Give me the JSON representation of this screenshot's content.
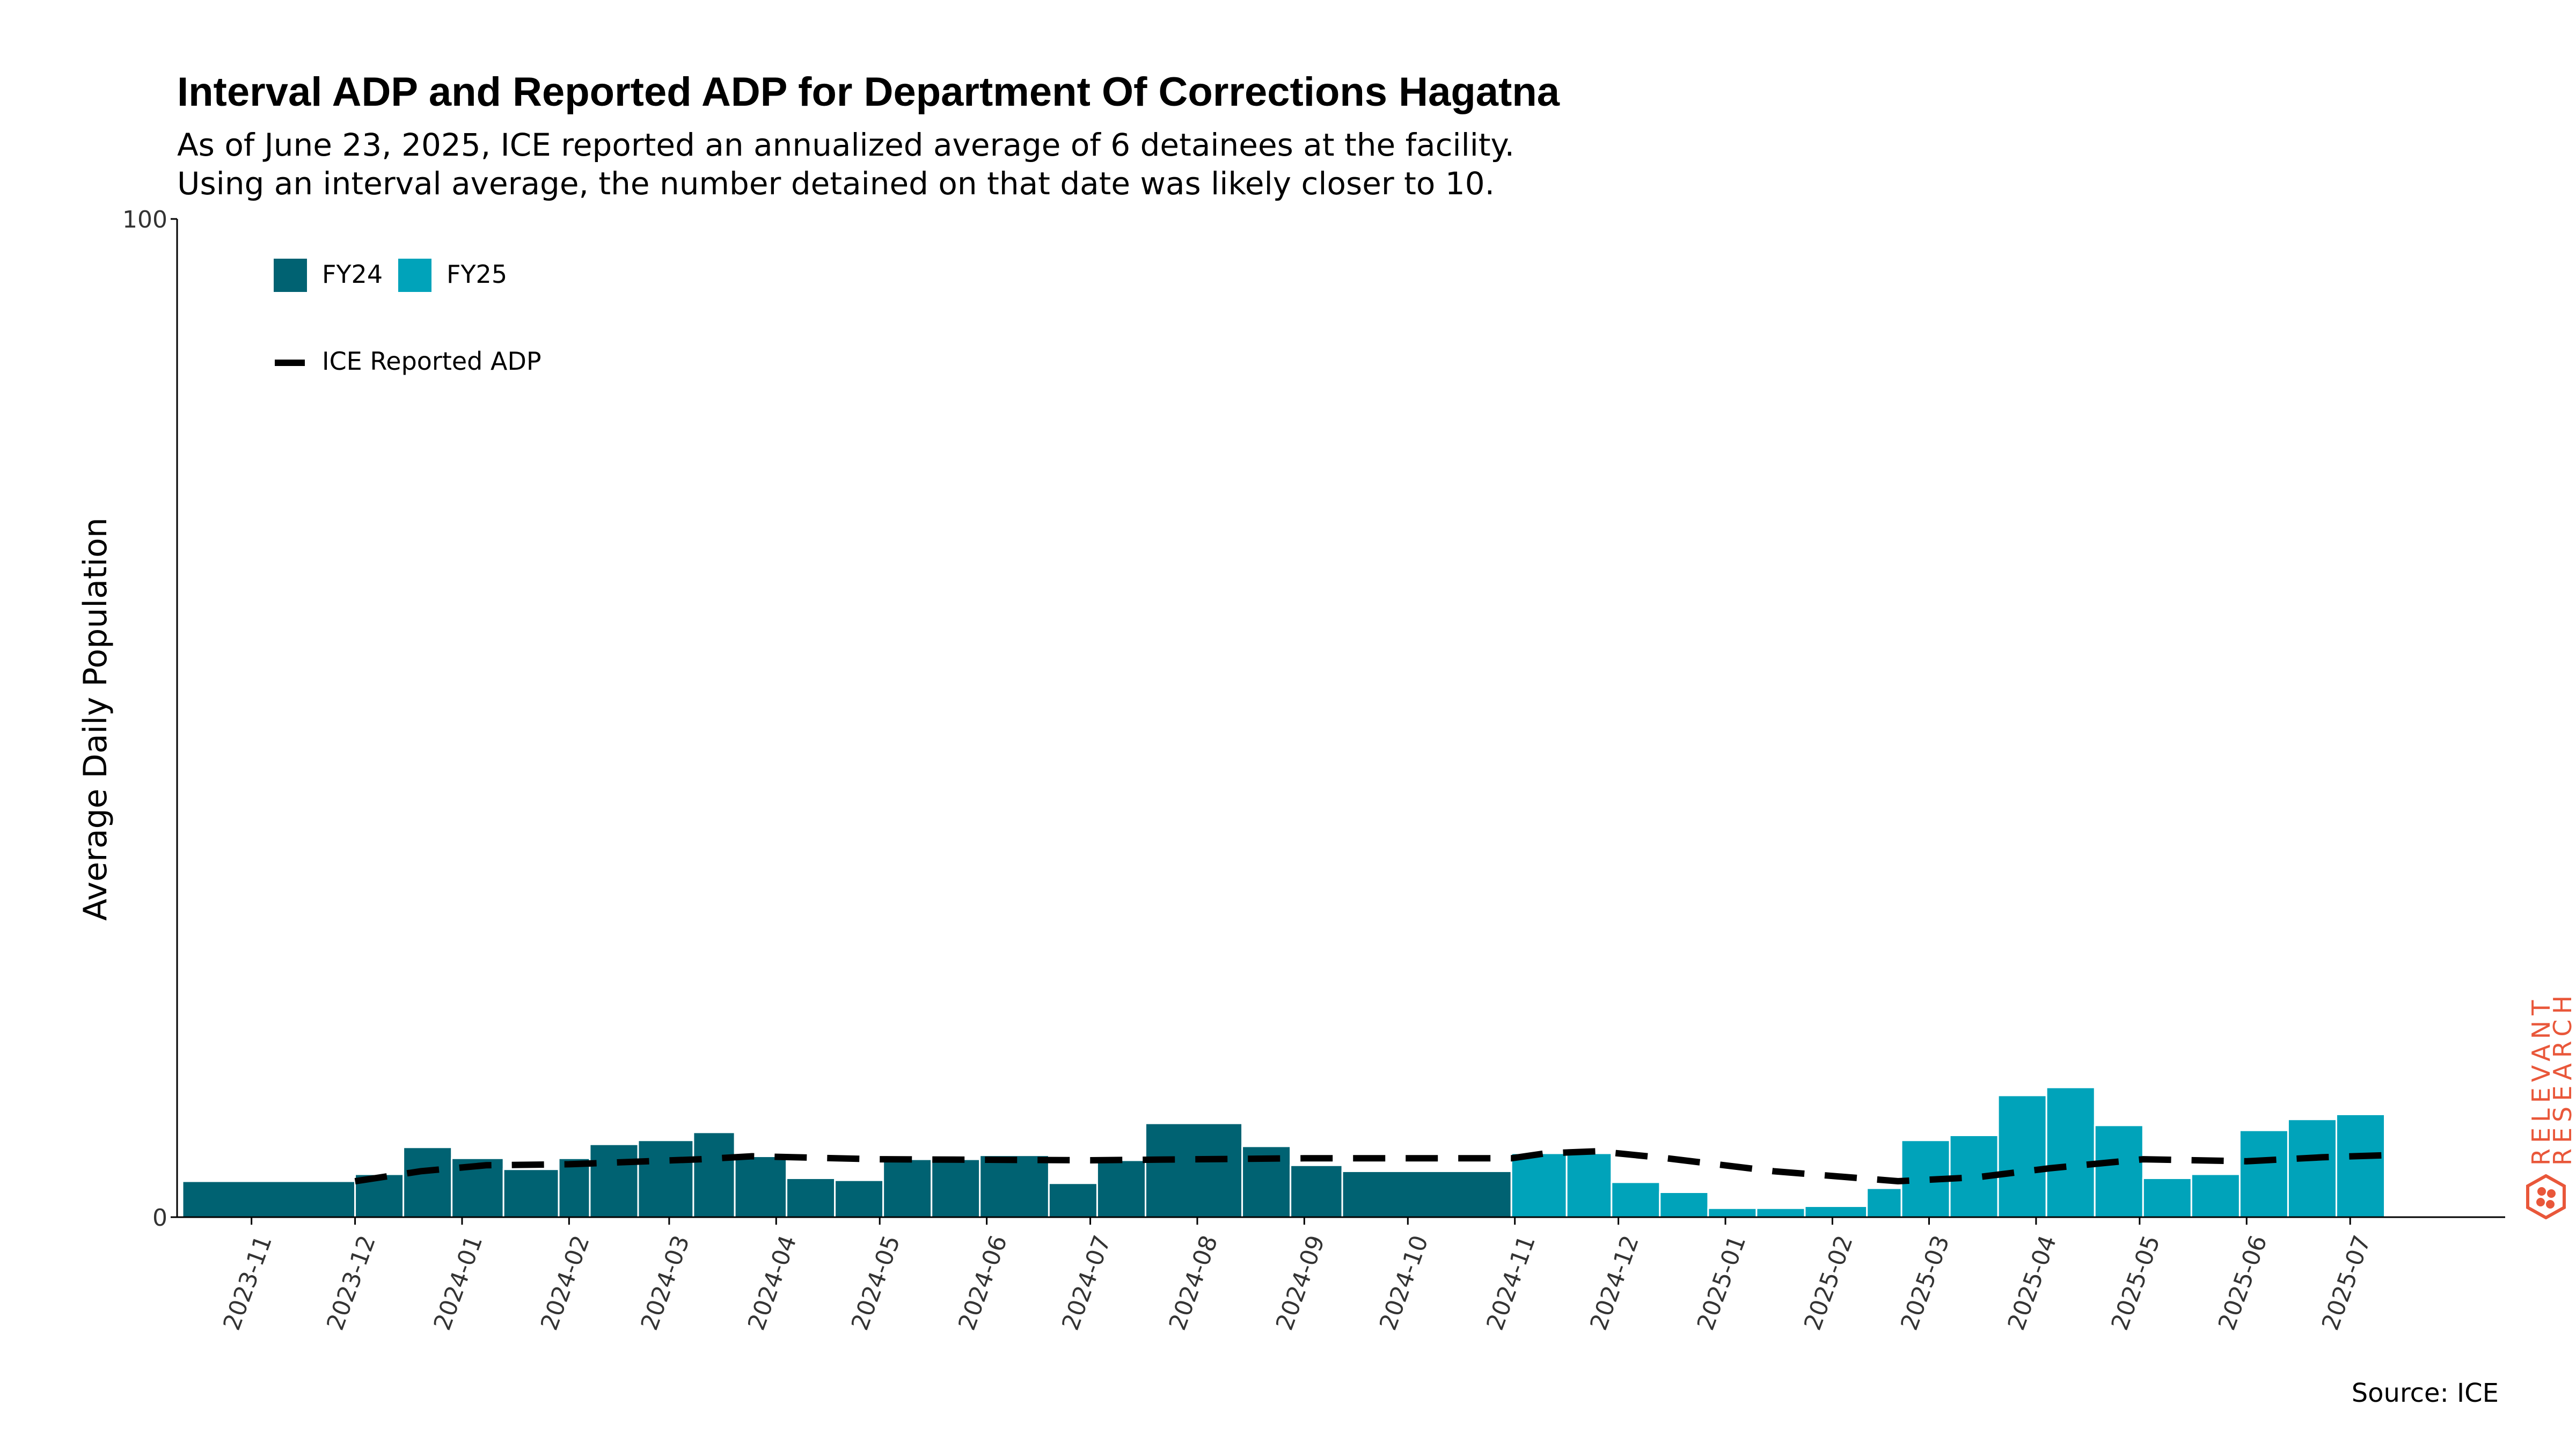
{
  "chart_data": {
    "type": "bar",
    "title": "Interval ADP and Reported ADP for Department Of Corrections Hagatna",
    "subtitle_lines": [
      "As of June 23, 2025, ICE reported an annualized average of 6 detainees at the facility.",
      "Using an interval average, the number detained on that date was likely closer to 10."
    ],
    "ylabel": "Average Daily Population",
    "ylim": [
      0,
      100
    ],
    "y_ticks": [
      "0",
      "100"
    ],
    "x_tick_labels": [
      "2023-11",
      "2023-12",
      "2024-01",
      "2024-02",
      "2024-03",
      "2024-04",
      "2024-05",
      "2024-06",
      "2024-07",
      "2024-08",
      "2024-09",
      "2024-10",
      "2024-11",
      "2024-12",
      "2025-01",
      "2025-02",
      "2025-03",
      "2025-04",
      "2025-05",
      "2025-06",
      "2025-07"
    ],
    "x_range": [
      "2023-10-12",
      "2025-07-26"
    ],
    "legend": {
      "placement": "top-left",
      "fy24_label": "FY24",
      "fy25_label": "FY25",
      "line_label": "ICE Reported ADP"
    },
    "colors": {
      "FY24": "#006272",
      "FY25": "#00a3ba",
      "reported_line": "#000000"
    },
    "series": [
      {
        "name": "FY24",
        "type": "bar",
        "intervals": [
          {
            "start": "2023-10-12",
            "end": "2023-12-01",
            "value": 3.6
          },
          {
            "start": "2023-12-01",
            "end": "2023-12-15",
            "value": 4.3
          },
          {
            "start": "2023-12-15",
            "end": "2023-12-29",
            "value": 7.0
          },
          {
            "start": "2023-12-29",
            "end": "2024-01-13",
            "value": 5.9
          },
          {
            "start": "2024-01-13",
            "end": "2024-01-29",
            "value": 4.8
          },
          {
            "start": "2024-01-29",
            "end": "2024-02-07",
            "value": 5.9
          },
          {
            "start": "2024-02-07",
            "end": "2024-02-21",
            "value": 7.3
          },
          {
            "start": "2024-02-21",
            "end": "2024-03-08",
            "value": 7.7
          },
          {
            "start": "2024-03-08",
            "end": "2024-03-20",
            "value": 8.5
          },
          {
            "start": "2024-03-20",
            "end": "2024-04-04",
            "value": 6.1
          },
          {
            "start": "2024-04-04",
            "end": "2024-04-18",
            "value": 3.9
          },
          {
            "start": "2024-04-18",
            "end": "2024-05-02",
            "value": 3.7
          },
          {
            "start": "2024-05-02",
            "end": "2024-05-16",
            "value": 5.8
          },
          {
            "start": "2024-05-16",
            "end": "2024-05-30",
            "value": 5.8
          },
          {
            "start": "2024-05-30",
            "end": "2024-06-19",
            "value": 6.2
          },
          {
            "start": "2024-06-19",
            "end": "2024-07-03",
            "value": 3.4
          },
          {
            "start": "2024-07-03",
            "end": "2024-07-17",
            "value": 5.7
          },
          {
            "start": "2024-07-17",
            "end": "2024-08-14",
            "value": 9.4
          },
          {
            "start": "2024-08-14",
            "end": "2024-08-28",
            "value": 7.1
          },
          {
            "start": "2024-08-28",
            "end": "2024-09-12",
            "value": 5.2
          },
          {
            "start": "2024-09-12",
            "end": "2024-10-31",
            "value": 4.6
          }
        ]
      },
      {
        "name": "FY25",
        "type": "bar",
        "intervals": [
          {
            "start": "2024-10-31",
            "end": "2024-11-16",
            "value": 6.4
          },
          {
            "start": "2024-11-16",
            "end": "2024-11-29",
            "value": 6.4
          },
          {
            "start": "2024-11-29",
            "end": "2024-12-13",
            "value": 3.5
          },
          {
            "start": "2024-12-13",
            "end": "2024-12-27",
            "value": 2.5
          },
          {
            "start": "2024-12-27",
            "end": "2025-01-10",
            "value": 0.9
          },
          {
            "start": "2025-01-10",
            "end": "2025-01-24",
            "value": 0.9
          },
          {
            "start": "2025-01-24",
            "end": "2025-02-11",
            "value": 1.1
          },
          {
            "start": "2025-02-11",
            "end": "2025-02-21",
            "value": 2.9
          },
          {
            "start": "2025-02-21",
            "end": "2025-03-07",
            "value": 7.7
          },
          {
            "start": "2025-03-07",
            "end": "2025-03-21",
            "value": 8.2
          },
          {
            "start": "2025-03-21",
            "end": "2025-04-04",
            "value": 12.2
          },
          {
            "start": "2025-04-04",
            "end": "2025-04-18",
            "value": 13.0
          },
          {
            "start": "2025-04-18",
            "end": "2025-05-02",
            "value": 9.2
          },
          {
            "start": "2025-05-02",
            "end": "2025-05-16",
            "value": 3.9
          },
          {
            "start": "2025-05-16",
            "end": "2025-05-30",
            "value": 4.3
          },
          {
            "start": "2025-05-30",
            "end": "2025-06-13",
            "value": 8.7
          },
          {
            "start": "2025-06-13",
            "end": "2025-06-27",
            "value": 9.8
          },
          {
            "start": "2025-06-27",
            "end": "2025-07-11",
            "value": 10.3
          }
        ]
      },
      {
        "name": "ICE Reported ADP",
        "type": "line",
        "style": "dashed",
        "points": [
          {
            "x": "2023-12-01",
            "y": 3.6
          },
          {
            "x": "2023-12-20",
            "y": 4.6
          },
          {
            "x": "2024-01-08",
            "y": 5.2
          },
          {
            "x": "2024-02-01",
            "y": 5.3
          },
          {
            "x": "2024-03-10",
            "y": 5.8
          },
          {
            "x": "2024-03-25",
            "y": 6.1
          },
          {
            "x": "2024-05-01",
            "y": 5.8
          },
          {
            "x": "2024-07-01",
            "y": 5.7
          },
          {
            "x": "2024-09-01",
            "y": 5.9
          },
          {
            "x": "2024-10-31",
            "y": 5.9
          },
          {
            "x": "2024-11-10",
            "y": 6.4
          },
          {
            "x": "2024-11-25",
            "y": 6.6
          },
          {
            "x": "2024-12-15",
            "y": 5.9
          },
          {
            "x": "2025-01-15",
            "y": 4.6
          },
          {
            "x": "2025-02-20",
            "y": 3.6
          },
          {
            "x": "2025-03-15",
            "y": 4.0
          },
          {
            "x": "2025-04-05",
            "y": 4.9
          },
          {
            "x": "2025-05-02",
            "y": 5.8
          },
          {
            "x": "2025-06-01",
            "y": 5.6
          },
          {
            "x": "2025-06-23",
            "y": 6.0
          },
          {
            "x": "2025-07-11",
            "y": 6.2
          }
        ]
      }
    ]
  },
  "footer": {
    "source": "Source: ICE"
  },
  "logo": {
    "line1": "RELEVANT",
    "line2": "RESEARCH",
    "color": "#e9573a"
  }
}
